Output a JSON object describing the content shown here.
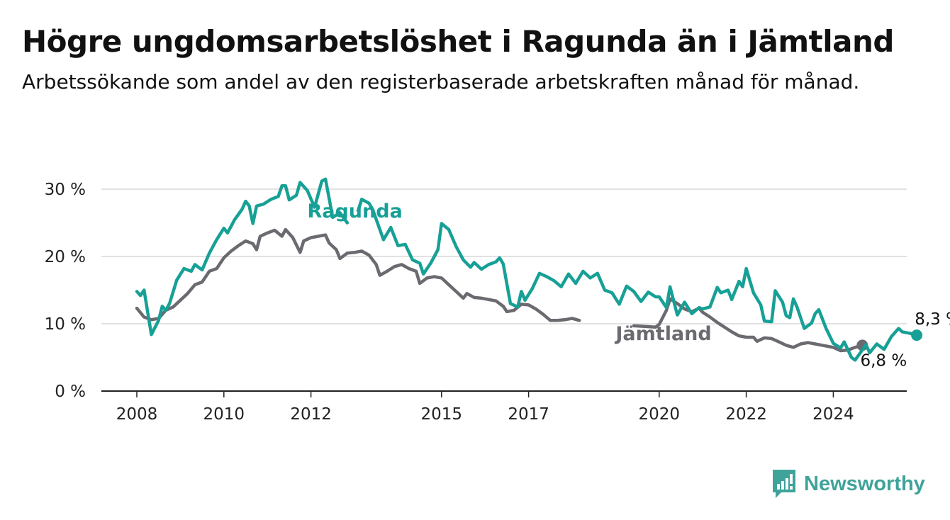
{
  "title": "Högre ungdomsarbetslöshet i Ragunda än i Jämtland",
  "subtitle": "Arbetssökande som andel av den registerbaserade arbetskraften månad för månad.",
  "logo": {
    "text": "Newsworthy",
    "icon": "bar-chart-bubble-icon",
    "color": "#3fa39a"
  },
  "chart_data": {
    "type": "line",
    "title": "Högre ungdomsarbetslöshet i Ragunda än i Jämtland",
    "subtitle": "Arbetssökande som andel av den registerbaserade arbetskraften månad för månad.",
    "xlabel": "",
    "ylabel": "",
    "x_ticks": [
      "2008",
      "2010",
      "2012",
      "2015",
      "2017",
      "2020",
      "2022",
      "2024"
    ],
    "y_ticks": [
      "0 %",
      "10 %",
      "20 %",
      "30 %"
    ],
    "ylim": [
      0,
      31.5
    ],
    "xlim": [
      "2008-01",
      "2025-06"
    ],
    "grid": true,
    "legend": "inline labels on lines",
    "series": [
      {
        "name": "Jämtland",
        "color": "#6b6a70",
        "end_label": "6,8 %",
        "points": [
          [
            "2008-01",
            12.3
          ],
          [
            "2008-03",
            11.0
          ],
          [
            "2008-05",
            10.6
          ],
          [
            "2008-07",
            10.8
          ],
          [
            "2008-09",
            12.0
          ],
          [
            "2008-11",
            12.5
          ],
          [
            "2009-01",
            13.5
          ],
          [
            "2009-03",
            14.5
          ],
          [
            "2009-05",
            15.8
          ],
          [
            "2009-07",
            16.2
          ],
          [
            "2009-09",
            17.8
          ],
          [
            "2009-11",
            18.2
          ],
          [
            "2010-01",
            19.8
          ],
          [
            "2010-03",
            20.8
          ],
          [
            "2010-05",
            21.6
          ],
          [
            "2010-07",
            22.3
          ],
          [
            "2010-09",
            21.9
          ],
          [
            "2010-10",
            21.0
          ],
          [
            "2010-11",
            23.0
          ],
          [
            "2011-01",
            23.5
          ],
          [
            "2011-03",
            23.9
          ],
          [
            "2011-05",
            23.0
          ],
          [
            "2011-06",
            24.0
          ],
          [
            "2011-08",
            22.8
          ],
          [
            "2011-10",
            20.6
          ],
          [
            "2011-11",
            22.3
          ],
          [
            "2012-01",
            22.8
          ],
          [
            "2012-03",
            23.0
          ],
          [
            "2012-05",
            23.2
          ],
          [
            "2012-06",
            22.0
          ],
          [
            "2012-08",
            21.0
          ],
          [
            "2012-09",
            19.7
          ],
          [
            "2012-11",
            20.5
          ],
          [
            "2013-01",
            20.6
          ],
          [
            "2013-03",
            20.8
          ],
          [
            "2013-05",
            20.2
          ],
          [
            "2013-07",
            18.8
          ],
          [
            "2013-08",
            17.2
          ],
          [
            "2013-10",
            17.8
          ],
          [
            "2013-12",
            18.5
          ],
          [
            "2014-02",
            18.8
          ],
          [
            "2014-04",
            18.2
          ],
          [
            "2014-06",
            17.8
          ],
          [
            "2014-07",
            16.0
          ],
          [
            "2014-09",
            16.8
          ],
          [
            "2014-11",
            17.0
          ],
          [
            "2015-01",
            16.8
          ],
          [
            "2015-03",
            15.8
          ],
          [
            "2015-05",
            14.8
          ],
          [
            "2015-07",
            13.8
          ],
          [
            "2015-08",
            14.5
          ],
          [
            "2015-10",
            13.9
          ],
          [
            "2015-12",
            13.8
          ],
          [
            "2016-02",
            13.6
          ],
          [
            "2016-04",
            13.4
          ],
          [
            "2016-06",
            12.6
          ],
          [
            "2016-07",
            11.8
          ],
          [
            "2016-09",
            12.0
          ],
          [
            "2016-11",
            12.9
          ],
          [
            "2017-01",
            12.8
          ],
          [
            "2017-03",
            12.2
          ],
          [
            "2017-05",
            11.4
          ],
          [
            "2017-07",
            10.5
          ],
          [
            "2017-09",
            10.5
          ],
          [
            "2017-11",
            10.6
          ],
          [
            "2018-01",
            10.8
          ],
          [
            "2018-03",
            10.5
          ]
        ],
        "points_after_label": [
          [
            "2019-06",
            9.7
          ],
          [
            "2019-09",
            9.6
          ],
          [
            "2019-12",
            9.5
          ],
          [
            "2020-01",
            9.9
          ],
          [
            "2020-03",
            12.0
          ],
          [
            "2020-04",
            13.7
          ],
          [
            "2020-06",
            13.0
          ],
          [
            "2020-08",
            12.2
          ],
          [
            "2020-10",
            11.8
          ],
          [
            "2020-12",
            12.3
          ],
          [
            "2021-01",
            11.7
          ],
          [
            "2021-03",
            11.0
          ],
          [
            "2021-05",
            10.2
          ],
          [
            "2021-07",
            9.5
          ],
          [
            "2021-09",
            8.8
          ],
          [
            "2021-11",
            8.2
          ],
          [
            "2022-01",
            8.0
          ],
          [
            "2022-03",
            8.0
          ],
          [
            "2022-04",
            7.4
          ],
          [
            "2022-06",
            7.9
          ],
          [
            "2022-08",
            7.8
          ],
          [
            "2022-10",
            7.3
          ],
          [
            "2022-12",
            6.8
          ],
          [
            "2023-02",
            6.5
          ],
          [
            "2023-04",
            7.0
          ],
          [
            "2023-06",
            7.2
          ],
          [
            "2023-08",
            7.0
          ],
          [
            "2023-10",
            6.8
          ],
          [
            "2024-01",
            6.5
          ],
          [
            "2024-03",
            6.0
          ],
          [
            "2024-05",
            6.1
          ],
          [
            "2024-07",
            6.5
          ],
          [
            "2024-09",
            6.8
          ]
        ],
        "label_at": [
          "2019-01",
          7.6
        ]
      },
      {
        "name": "Ragunda",
        "color": "#17a096",
        "end_label": "8,3 %",
        "points": [
          [
            "2008-01",
            14.8
          ],
          [
            "2008-02",
            14.2
          ],
          [
            "2008-03",
            15.0
          ],
          [
            "2008-05",
            8.4
          ],
          [
            "2008-07",
            10.5
          ],
          [
            "2008-08",
            12.6
          ],
          [
            "2008-09",
            12.0
          ],
          [
            "2008-10",
            13.0
          ],
          [
            "2008-12",
            16.5
          ],
          [
            "2009-02",
            18.2
          ],
          [
            "2009-04",
            17.8
          ],
          [
            "2009-05",
            18.8
          ],
          [
            "2009-07",
            18.0
          ],
          [
            "2009-09",
            20.5
          ],
          [
            "2009-11",
            22.5
          ],
          [
            "2010-01",
            24.2
          ],
          [
            "2010-02",
            23.5
          ],
          [
            "2010-04",
            25.5
          ],
          [
            "2010-06",
            27.0
          ],
          [
            "2010-07",
            28.2
          ],
          [
            "2010-08",
            27.5
          ],
          [
            "2010-09",
            24.9
          ],
          [
            "2010-10",
            27.5
          ],
          [
            "2010-12",
            27.8
          ],
          [
            "2011-02",
            28.5
          ],
          [
            "2011-04",
            28.9
          ],
          [
            "2011-05",
            30.5
          ],
          [
            "2011-06",
            30.5
          ],
          [
            "2011-07",
            28.4
          ],
          [
            "2011-09",
            29.1
          ],
          [
            "2011-10",
            31.0
          ],
          [
            "2011-12",
            29.8
          ],
          [
            "2012-02",
            27.3
          ],
          [
            "2012-04",
            31.2
          ],
          [
            "2012-05",
            31.5
          ],
          [
            "2012-07",
            25.8
          ],
          [
            "2012-09",
            26.5
          ],
          [
            "2012-11",
            25.0
          ]
        ],
        "points_after_label": [
          [
            "2013-02",
            26.8
          ],
          [
            "2013-03",
            28.5
          ],
          [
            "2013-05",
            27.9
          ],
          [
            "2013-06",
            27.0
          ],
          [
            "2013-09",
            22.5
          ],
          [
            "2013-11",
            24.3
          ],
          [
            "2014-01",
            21.6
          ],
          [
            "2014-03",
            21.8
          ],
          [
            "2014-05",
            19.5
          ],
          [
            "2014-07",
            19.0
          ],
          [
            "2014-08",
            17.4
          ],
          [
            "2014-10",
            19.0
          ],
          [
            "2014-12",
            21.0
          ],
          [
            "2015-01",
            24.9
          ],
          [
            "2015-03",
            24.0
          ],
          [
            "2015-05",
            21.5
          ],
          [
            "2015-07",
            19.5
          ],
          [
            "2015-09",
            18.4
          ],
          [
            "2015-10",
            19.1
          ],
          [
            "2015-12",
            18.1
          ],
          [
            "2016-02",
            18.8
          ],
          [
            "2016-04",
            19.2
          ],
          [
            "2016-05",
            19.8
          ],
          [
            "2016-06",
            18.9
          ],
          [
            "2016-08",
            13.0
          ],
          [
            "2016-10",
            12.5
          ],
          [
            "2016-11",
            14.8
          ],
          [
            "2016-12",
            13.5
          ],
          [
            "2017-02",
            15.2
          ],
          [
            "2017-04",
            17.5
          ],
          [
            "2017-06",
            17.0
          ],
          [
            "2017-08",
            16.4
          ],
          [
            "2017-10",
            15.5
          ],
          [
            "2017-12",
            17.4
          ],
          [
            "2018-02",
            16.0
          ],
          [
            "2018-04",
            17.8
          ],
          [
            "2018-06",
            16.8
          ],
          [
            "2018-08",
            17.5
          ],
          [
            "2018-10",
            15.0
          ],
          [
            "2018-12",
            14.6
          ],
          [
            "2019-02",
            12.9
          ],
          [
            "2019-04",
            15.6
          ],
          [
            "2019-06",
            14.8
          ],
          [
            "2019-08",
            13.3
          ],
          [
            "2019-10",
            14.7
          ],
          [
            "2019-12",
            14.0
          ],
          [
            "2020-01",
            14.0
          ],
          [
            "2020-03",
            12.4
          ],
          [
            "2020-04",
            15.5
          ],
          [
            "2020-06",
            11.3
          ],
          [
            "2020-08",
            13.2
          ],
          [
            "2020-10",
            11.5
          ],
          [
            "2020-12",
            12.4
          ],
          [
            "2021-01",
            12.2
          ],
          [
            "2021-03",
            12.5
          ],
          [
            "2021-05",
            15.4
          ],
          [
            "2021-06",
            14.6
          ],
          [
            "2021-08",
            15.0
          ],
          [
            "2021-09",
            13.6
          ],
          [
            "2021-11",
            16.3
          ],
          [
            "2021-12",
            15.5
          ],
          [
            "2022-01",
            18.2
          ],
          [
            "2022-03",
            14.6
          ],
          [
            "2022-05",
            12.8
          ],
          [
            "2022-06",
            10.4
          ],
          [
            "2022-08",
            10.3
          ],
          [
            "2022-09",
            14.9
          ],
          [
            "2022-11",
            13.2
          ],
          [
            "2022-12",
            11.2
          ],
          [
            "2023-01",
            10.9
          ],
          [
            "2023-02",
            13.7
          ],
          [
            "2023-03",
            12.5
          ],
          [
            "2023-05",
            9.3
          ],
          [
            "2023-07",
            10.1
          ],
          [
            "2023-08",
            11.5
          ],
          [
            "2023-09",
            12.1
          ],
          [
            "2023-11",
            9.3
          ],
          [
            "2024-01",
            7.1
          ],
          [
            "2024-03",
            6.4
          ],
          [
            "2024-04",
            7.3
          ],
          [
            "2024-06",
            5.0
          ],
          [
            "2024-07",
            4.6
          ],
          [
            "2024-09",
            6.1
          ],
          [
            "2024-10",
            6.9
          ],
          [
            "2024-11",
            5.7
          ],
          [
            "2025-01",
            7.0
          ],
          [
            "2025-03",
            6.2
          ],
          [
            "2025-05",
            8.1
          ],
          [
            "2025-07",
            9.3
          ],
          [
            "2025-08",
            8.8
          ],
          [
            "2025-10",
            8.6
          ],
          [
            "2025-12",
            8.3
          ]
        ],
        "label_at": [
          "2011-12",
          25.8
        ]
      }
    ]
  }
}
